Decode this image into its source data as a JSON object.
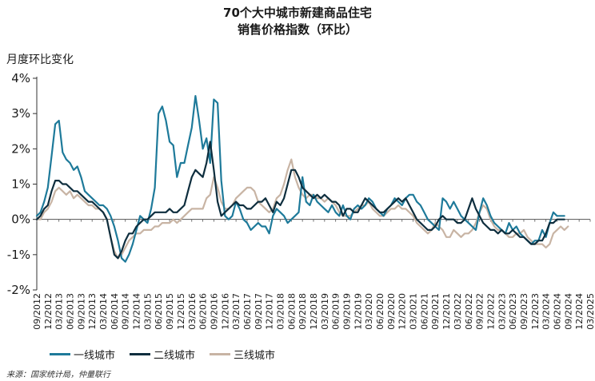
{
  "chart_data": {
    "type": "line",
    "title": "70个大中城市新建商品住宅",
    "subtitle": "销售价格指数（环比）",
    "ylabel": "月度环比变化",
    "ylim": [
      -2,
      4
    ],
    "yticks": [
      -2,
      -1,
      0,
      1,
      2,
      3,
      4
    ],
    "ytick_labels": [
      "-2%",
      "-1%",
      "0%",
      "1%",
      "2%",
      "3%",
      "4%"
    ],
    "x_start": "2012-09",
    "xtick_labels": [
      "09/2012",
      "12/2012",
      "03/2013",
      "06/2013",
      "09/2013",
      "12/2013",
      "03/2014",
      "06/2014",
      "09/2014",
      "12/2014",
      "03/2015",
      "06/2015",
      "09/2015",
      "12/2015",
      "03/2016",
      "06/2016",
      "09/2016",
      "12/2016",
      "03/2017",
      "06/2017",
      "09/2017",
      "12/2017",
      "03/2018",
      "06/2018",
      "09/2018",
      "12/2018",
      "03/2019",
      "06/2019",
      "09/2019",
      "12/2019",
      "03/2020",
      "06/2020",
      "09/2020",
      "12/2020",
      "03/2021",
      "06/2021",
      "09/2021",
      "12/2021",
      "03/2022",
      "06/2022",
      "09/2022",
      "12/2022",
      "03/2023",
      "06/2023",
      "09/2023",
      "12/2023",
      "03/2024",
      "06/2024",
      "09/2024",
      "12/2024",
      "03/2025"
    ],
    "grid": false,
    "legend_position": "bottom-left",
    "series": [
      {
        "name": "一线城市",
        "color": "#1e7a9a",
        "values": [
          0.1,
          0.2,
          0.5,
          0.9,
          1.8,
          2.7,
          2.8,
          1.9,
          1.7,
          1.6,
          1.4,
          1.5,
          1.2,
          0.8,
          0.7,
          0.6,
          0.5,
          0.4,
          0.4,
          0.3,
          0.1,
          -0.2,
          -0.6,
          -1.1,
          -1.2,
          -1.0,
          -0.7,
          -0.3,
          0.1,
          0.0,
          -0.1,
          0.3,
          0.9,
          3.0,
          3.2,
          2.8,
          2.2,
          2.1,
          1.2,
          1.6,
          1.6,
          2.1,
          2.6,
          3.5,
          2.8,
          2.0,
          2.3,
          1.6,
          3.4,
          3.3,
          1.1,
          0.1,
          0.0,
          0.1,
          0.5,
          0.3,
          0.0,
          -0.1,
          -0.3,
          -0.2,
          -0.1,
          -0.2,
          -0.2,
          -0.4,
          0.1,
          0.3,
          0.2,
          0.1,
          -0.1,
          0.0,
          0.1,
          0.2,
          1.2,
          0.5,
          0.4,
          0.7,
          0.5,
          0.4,
          0.3,
          0.2,
          0.4,
          0.2,
          0.1,
          0.4,
          0.1,
          0.0,
          0.3,
          0.4,
          0.3,
          0.4,
          0.6,
          0.5,
          0.3,
          0.2,
          0.1,
          0.3,
          0.4,
          0.6,
          0.5,
          0.4,
          0.6,
          0.7,
          0.7,
          0.5,
          0.4,
          0.2,
          0.0,
          -0.1,
          -0.2,
          -0.3,
          0.6,
          0.5,
          0.3,
          0.5,
          0.3,
          0.1,
          0.0,
          -0.1,
          -0.2,
          -0.3,
          0.2,
          0.6,
          0.4,
          0.1,
          -0.1,
          -0.2,
          -0.3,
          -0.4,
          -0.1,
          -0.3,
          -0.2,
          -0.4,
          -0.5,
          -0.6,
          -0.7,
          -0.6,
          -0.6,
          -0.3,
          -0.5,
          -0.1,
          0.2,
          0.1,
          0.1,
          0.1
        ]
      },
      {
        "name": "二线城市",
        "color": "#0e2e3e",
        "values": [
          0.0,
          0.1,
          0.3,
          0.4,
          0.8,
          1.1,
          1.1,
          1.0,
          1.0,
          0.9,
          0.8,
          0.8,
          0.7,
          0.6,
          0.5,
          0.5,
          0.4,
          0.3,
          0.2,
          0.0,
          -0.5,
          -1.0,
          -1.1,
          -0.9,
          -0.6,
          -0.4,
          -0.4,
          -0.2,
          -0.1,
          0.0,
          0.0,
          0.1,
          0.2,
          0.2,
          0.2,
          0.2,
          0.3,
          0.2,
          0.2,
          0.3,
          0.4,
          0.8,
          1.2,
          1.4,
          1.3,
          1.2,
          1.6,
          2.2,
          1.4,
          0.5,
          0.1,
          0.2,
          0.3,
          0.4,
          0.5,
          0.4,
          0.4,
          0.3,
          0.3,
          0.4,
          0.5,
          0.5,
          0.6,
          0.4,
          0.2,
          0.5,
          0.4,
          0.6,
          1.0,
          1.4,
          1.4,
          1.2,
          0.9,
          0.8,
          0.7,
          0.6,
          0.7,
          0.6,
          0.7,
          0.6,
          0.5,
          0.5,
          0.4,
          0.1,
          0.3,
          0.3,
          0.2,
          0.2,
          0.4,
          0.6,
          0.5,
          0.4,
          0.3,
          0.2,
          0.2,
          0.3,
          0.4,
          0.5,
          0.6,
          0.5,
          0.6,
          0.4,
          0.2,
          0.0,
          -0.1,
          -0.2,
          -0.3,
          -0.3,
          -0.2,
          0.0,
          0.1,
          0.0,
          0.0,
          0.0,
          -0.1,
          -0.1,
          0.0,
          0.3,
          0.6,
          0.3,
          0.1,
          -0.1,
          -0.2,
          -0.3,
          -0.3,
          -0.4,
          -0.3,
          -0.4,
          -0.4,
          -0.3,
          -0.4,
          -0.5,
          -0.5,
          -0.6,
          -0.7,
          -0.7,
          -0.6,
          -0.6,
          -0.4,
          -0.1,
          -0.1,
          0.0,
          0.0,
          0.0
        ]
      },
      {
        "name": "三线城市",
        "color": "#c8b4a4",
        "values": [
          0.0,
          0.0,
          0.2,
          0.3,
          0.5,
          0.8,
          0.9,
          0.8,
          0.7,
          0.8,
          0.6,
          0.7,
          0.6,
          0.5,
          0.4,
          0.4,
          0.3,
          0.3,
          0.2,
          0.0,
          -0.5,
          -0.9,
          -1.1,
          -1.0,
          -0.8,
          -0.6,
          -0.5,
          -0.4,
          -0.4,
          -0.3,
          -0.3,
          -0.3,
          -0.2,
          -0.2,
          -0.1,
          -0.1,
          -0.1,
          0.0,
          -0.1,
          0.0,
          0.1,
          0.2,
          0.3,
          0.3,
          0.3,
          0.3,
          0.6,
          0.7,
          1.2,
          0.9,
          0.5,
          0.3,
          0.3,
          0.4,
          0.6,
          0.7,
          0.8,
          0.9,
          0.9,
          0.8,
          0.5,
          0.4,
          0.3,
          0.2,
          0.3,
          0.6,
          0.7,
          1.0,
          1.4,
          1.7,
          1.2,
          0.9,
          0.7,
          0.6,
          0.7,
          0.7,
          0.6,
          0.6,
          0.5,
          0.6,
          0.5,
          0.4,
          0.2,
          0.1,
          0.1,
          0.1,
          0.2,
          0.3,
          0.4,
          0.4,
          0.5,
          0.3,
          0.2,
          0.1,
          0.1,
          0.2,
          0.3,
          0.3,
          0.4,
          0.3,
          0.3,
          0.2,
          0.1,
          -0.1,
          -0.2,
          -0.3,
          -0.4,
          -0.3,
          -0.1,
          -0.2,
          -0.3,
          -0.5,
          -0.5,
          -0.3,
          -0.4,
          -0.5,
          -0.4,
          -0.4,
          -0.3,
          -0.1,
          0.2,
          0.4,
          0.3,
          0.0,
          -0.2,
          -0.3,
          -0.3,
          -0.4,
          -0.5,
          -0.5,
          -0.4,
          -0.4,
          -0.3,
          -0.5,
          -0.6,
          -0.7,
          -0.7,
          -0.7,
          -0.8,
          -0.7,
          -0.4,
          -0.3,
          -0.2,
          -0.3,
          -0.2
        ]
      }
    ]
  },
  "source_note": "来源：国家统计局，仲量联行"
}
